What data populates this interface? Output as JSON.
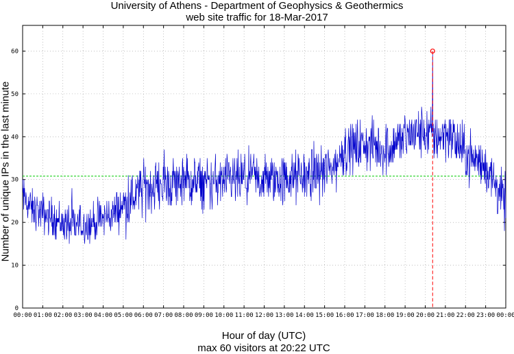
{
  "chart_data": {
    "type": "line",
    "title": "University of Athens - Department of Geophysics & Geothermics",
    "subtitle": "web site traffic for 18-Mar-2017",
    "xlabel": "Hour of day (UTC)",
    "xsublabel": "max 60 visitors at 20:22 UTC",
    "ylabel": "Number of unique IPs in the last minute",
    "ylim": [
      0,
      66
    ],
    "yticks": [
      0,
      10,
      20,
      30,
      40,
      50,
      60
    ],
    "xlim": [
      "00:00",
      "24:00"
    ],
    "xticks": [
      "00:00",
      "01:00",
      "02:00",
      "03:00",
      "04:00",
      "05:00",
      "06:00",
      "07:00",
      "08:00",
      "09:00",
      "10:00",
      "11:00",
      "12:00",
      "13:00",
      "14:00",
      "15:00",
      "16:00",
      "17:00",
      "18:00",
      "19:00",
      "20:00",
      "21:00",
      "22:00",
      "23:00",
      "00:00"
    ],
    "grid": true,
    "mean_line": {
      "value": 30.8,
      "color": "#00cc00"
    },
    "max_marker": {
      "time": "20:22",
      "value": 60,
      "color": "#ff0000"
    },
    "series": [
      {
        "color": "#0000cc",
        "hourly_profile": [
          [
            "00:00",
            26
          ],
          [
            "00:30",
            23
          ],
          [
            "01:00",
            22
          ],
          [
            "01:30",
            21
          ],
          [
            "02:00",
            20
          ],
          [
            "02:30",
            19
          ],
          [
            "03:00",
            19.5
          ],
          [
            "03:30",
            20
          ],
          [
            "04:00",
            21
          ],
          [
            "04:30",
            22
          ],
          [
            "05:00",
            24
          ],
          [
            "05:30",
            26
          ],
          [
            "06:00",
            28
          ],
          [
            "07:00",
            29
          ],
          [
            "08:00",
            29.5
          ],
          [
            "09:00",
            29
          ],
          [
            "10:00",
            29.5
          ],
          [
            "11:00",
            30
          ],
          [
            "12:00",
            30
          ],
          [
            "13:00",
            30
          ],
          [
            "14:00",
            31
          ],
          [
            "15:00",
            32
          ],
          [
            "15:30",
            33
          ],
          [
            "16:00",
            37
          ],
          [
            "17:00",
            38
          ],
          [
            "18:00",
            37
          ],
          [
            "19:00",
            40
          ],
          [
            "20:00",
            41
          ],
          [
            "20:30",
            40
          ],
          [
            "21:00",
            41
          ],
          [
            "21:30",
            39
          ],
          [
            "22:00",
            36
          ],
          [
            "23:00",
            33
          ],
          [
            "23:30",
            29
          ],
          [
            "24:00",
            24
          ]
        ]
      }
    ]
  }
}
